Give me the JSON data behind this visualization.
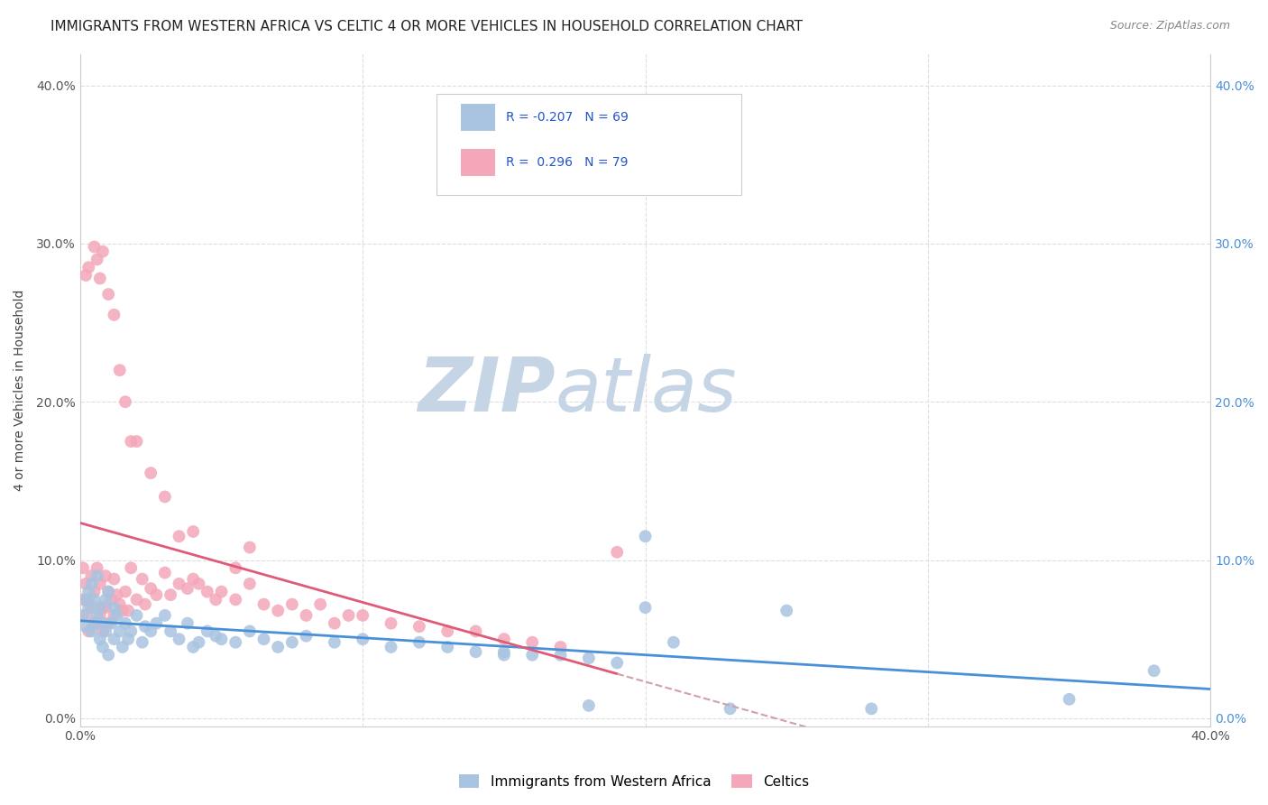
{
  "title": "IMMIGRANTS FROM WESTERN AFRICA VS CELTIC 4 OR MORE VEHICLES IN HOUSEHOLD CORRELATION CHART",
  "source": "Source: ZipAtlas.com",
  "ylabel": "4 or more Vehicles in Household",
  "legend_blue_label": "Immigrants from Western Africa",
  "legend_pink_label": "Celtics",
  "R_blue": "-0.207",
  "N_blue": "69",
  "R_pink": "0.296",
  "N_pink": "79",
  "xlim": [
    0.0,
    0.4
  ],
  "ylim": [
    -0.005,
    0.42
  ],
  "yticks": [
    0.0,
    0.1,
    0.2,
    0.3,
    0.4
  ],
  "xticks": [
    0.0,
    0.1,
    0.2,
    0.3,
    0.4
  ],
  "color_blue": "#a8c4e0",
  "color_pink": "#f4a7b9",
  "color_blue_line": "#4a90d9",
  "color_pink_line": "#e05a78",
  "color_dashed_line": "#d0a0b0",
  "watermark_zip": "ZIP",
  "watermark_atlas": "atlas",
  "watermark_color_zip": "#c5d5e5",
  "watermark_color_atlas": "#c5d5e5",
  "background_color": "#ffffff",
  "grid_color": "#dddddd",
  "title_color": "#222222",
  "right_ytick_color": "#4a90d9",
  "title_fontsize": 11,
  "source_fontsize": 9,
  "blue_scatter_x": [
    0.001,
    0.002,
    0.002,
    0.003,
    0.003,
    0.004,
    0.004,
    0.005,
    0.005,
    0.006,
    0.006,
    0.007,
    0.007,
    0.008,
    0.008,
    0.009,
    0.009,
    0.01,
    0.01,
    0.011,
    0.012,
    0.012,
    0.013,
    0.014,
    0.015,
    0.016,
    0.017,
    0.018,
    0.02,
    0.022,
    0.023,
    0.025,
    0.027,
    0.03,
    0.032,
    0.035,
    0.038,
    0.04,
    0.042,
    0.045,
    0.048,
    0.05,
    0.055,
    0.06,
    0.065,
    0.07,
    0.075,
    0.08,
    0.09,
    0.1,
    0.11,
    0.12,
    0.13,
    0.14,
    0.15,
    0.16,
    0.17,
    0.18,
    0.19,
    0.2,
    0.21,
    0.23,
    0.25,
    0.28,
    0.15,
    0.18,
    0.35,
    0.38,
    0.2
  ],
  "blue_scatter_y": [
    0.065,
    0.075,
    0.058,
    0.07,
    0.08,
    0.055,
    0.085,
    0.06,
    0.075,
    0.065,
    0.09,
    0.05,
    0.07,
    0.045,
    0.06,
    0.055,
    0.075,
    0.04,
    0.08,
    0.06,
    0.07,
    0.05,
    0.065,
    0.055,
    0.045,
    0.06,
    0.05,
    0.055,
    0.065,
    0.048,
    0.058,
    0.055,
    0.06,
    0.065,
    0.055,
    0.05,
    0.06,
    0.045,
    0.048,
    0.055,
    0.052,
    0.05,
    0.048,
    0.055,
    0.05,
    0.045,
    0.048,
    0.052,
    0.048,
    0.05,
    0.045,
    0.048,
    0.045,
    0.042,
    0.042,
    0.04,
    0.04,
    0.038,
    0.035,
    0.115,
    0.048,
    0.006,
    0.068,
    0.006,
    0.04,
    0.008,
    0.012,
    0.03,
    0.07
  ],
  "pink_scatter_x": [
    0.001,
    0.001,
    0.002,
    0.002,
    0.003,
    0.003,
    0.004,
    0.004,
    0.005,
    0.005,
    0.006,
    0.006,
    0.007,
    0.007,
    0.008,
    0.008,
    0.009,
    0.009,
    0.01,
    0.01,
    0.011,
    0.012,
    0.012,
    0.013,
    0.014,
    0.015,
    0.016,
    0.017,
    0.018,
    0.02,
    0.022,
    0.023,
    0.025,
    0.027,
    0.03,
    0.032,
    0.035,
    0.038,
    0.04,
    0.042,
    0.045,
    0.048,
    0.05,
    0.055,
    0.06,
    0.065,
    0.07,
    0.075,
    0.08,
    0.085,
    0.09,
    0.095,
    0.1,
    0.11,
    0.12,
    0.13,
    0.14,
    0.15,
    0.16,
    0.17,
    0.002,
    0.003,
    0.005,
    0.006,
    0.007,
    0.008,
    0.01,
    0.012,
    0.014,
    0.016,
    0.018,
    0.02,
    0.025,
    0.03,
    0.055,
    0.06,
    0.19,
    0.035,
    0.04
  ],
  "pink_scatter_y": [
    0.095,
    0.075,
    0.085,
    0.065,
    0.075,
    0.055,
    0.09,
    0.07,
    0.08,
    0.06,
    0.095,
    0.06,
    0.085,
    0.065,
    0.07,
    0.055,
    0.09,
    0.07,
    0.08,
    0.06,
    0.075,
    0.088,
    0.065,
    0.078,
    0.072,
    0.068,
    0.08,
    0.068,
    0.095,
    0.075,
    0.088,
    0.072,
    0.082,
    0.078,
    0.092,
    0.078,
    0.085,
    0.082,
    0.088,
    0.085,
    0.08,
    0.075,
    0.08,
    0.075,
    0.085,
    0.072,
    0.068,
    0.072,
    0.065,
    0.072,
    0.06,
    0.065,
    0.065,
    0.06,
    0.058,
    0.055,
    0.055,
    0.05,
    0.048,
    0.045,
    0.28,
    0.285,
    0.298,
    0.29,
    0.278,
    0.295,
    0.268,
    0.255,
    0.22,
    0.2,
    0.175,
    0.175,
    0.155,
    0.14,
    0.095,
    0.108,
    0.105,
    0.115,
    0.118
  ]
}
